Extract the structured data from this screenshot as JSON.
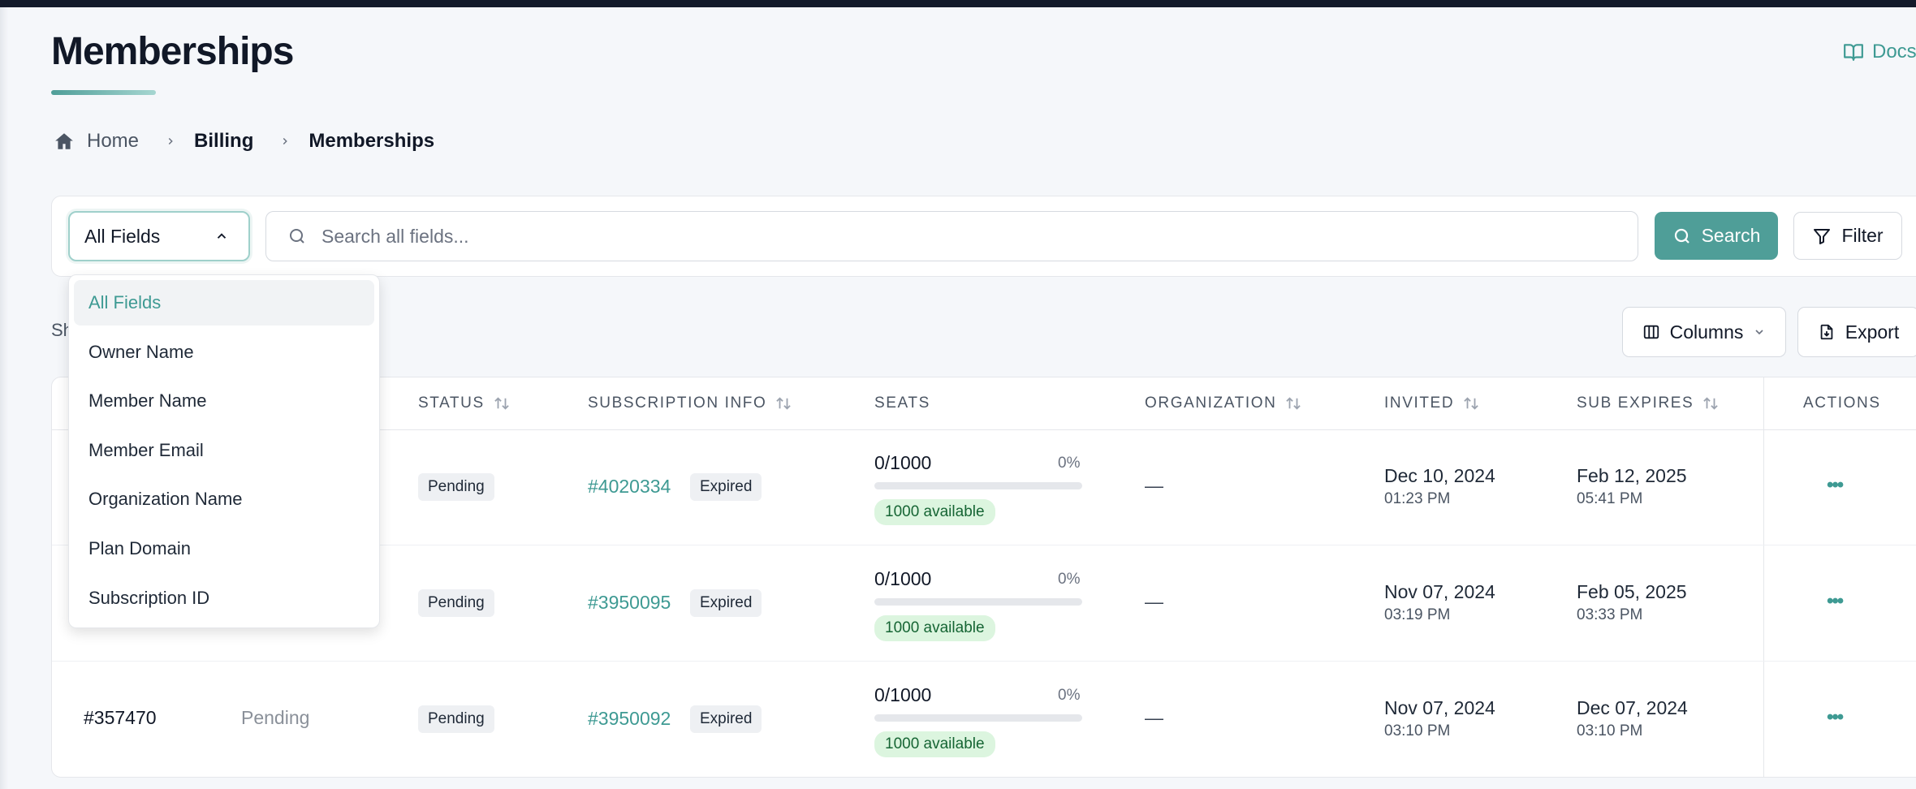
{
  "header": {
    "title": "Memberships",
    "docs_label": "Docs"
  },
  "breadcrumb": [
    {
      "label": "Home"
    },
    {
      "label": "Billing"
    },
    {
      "label": "Memberships"
    }
  ],
  "search": {
    "field_select_value": "All Fields",
    "placeholder": "Search all fields...",
    "search_label": "Search",
    "filter_label": "Filter"
  },
  "dropdown": {
    "options": [
      "All Fields",
      "Owner Name",
      "Member Name",
      "Member Email",
      "Organization Name",
      "Plan Domain",
      "Subscription ID"
    ],
    "selected": "All Fields"
  },
  "toolbar": {
    "showing_partial": "Sh",
    "columns_label": "Columns",
    "export_label": "Export"
  },
  "table": {
    "columns": {
      "status": "STATUS",
      "subscription_info": "SUBSCRIPTION INFO",
      "seats": "SEATS",
      "organization": "ORGANIZATION",
      "invited": "INVITED",
      "sub_expires": "SUB EXPIRES",
      "actions": "ACTIONS"
    },
    "rows": [
      {
        "id": "",
        "type": "",
        "status": "Pending",
        "subscription_id": "#4020334",
        "subscription_status": "Expired",
        "seats_used": "0/1000",
        "seats_pct": "0%",
        "seats_fill": 0,
        "seats_available": "1000 available",
        "organization": "—",
        "invited_date": "Dec 10, 2024",
        "invited_time": "01:23 PM",
        "expires_date": "Feb 12, 2025",
        "expires_time": "05:41 PM",
        "actions": "•••"
      },
      {
        "id": "",
        "type": "",
        "status": "Pending",
        "subscription_id": "#3950095",
        "subscription_status": "Expired",
        "seats_used": "0/1000",
        "seats_pct": "0%",
        "seats_fill": 0,
        "seats_available": "1000 available",
        "organization": "—",
        "invited_date": "Nov 07, 2024",
        "invited_time": "03:19 PM",
        "expires_date": "Feb 05, 2025",
        "expires_time": "03:33 PM",
        "actions": "•••"
      },
      {
        "id": "#357470",
        "type": "Pending",
        "status": "Pending",
        "subscription_id": "#3950092",
        "subscription_status": "Expired",
        "seats_used": "0/1000",
        "seats_pct": "0%",
        "seats_fill": 0,
        "seats_available": "1000 available",
        "organization": "—",
        "invited_date": "Nov 07, 2024",
        "invited_time": "03:10 PM",
        "expires_date": "Dec 07, 2024",
        "expires_time": "03:10 PM",
        "actions": "•••"
      }
    ]
  },
  "colors": {
    "accent": "#4f9e98",
    "link": "#3e9a93",
    "topbar": "#141b2b",
    "available_bg": "#dcf5df",
    "available_text": "#166534"
  },
  "icons": {
    "docs": "book-open-icon",
    "home": "home-icon",
    "breadcrumb_separator": "chevron-right-icon",
    "select": "chevron-up-icon",
    "search": "search-icon",
    "filter": "filter-icon",
    "columns": "columns-icon",
    "columns_caret": "chevron-down-icon",
    "export": "file-export-icon",
    "sort": "sort-icon",
    "actions": "more-horizontal-icon"
  }
}
